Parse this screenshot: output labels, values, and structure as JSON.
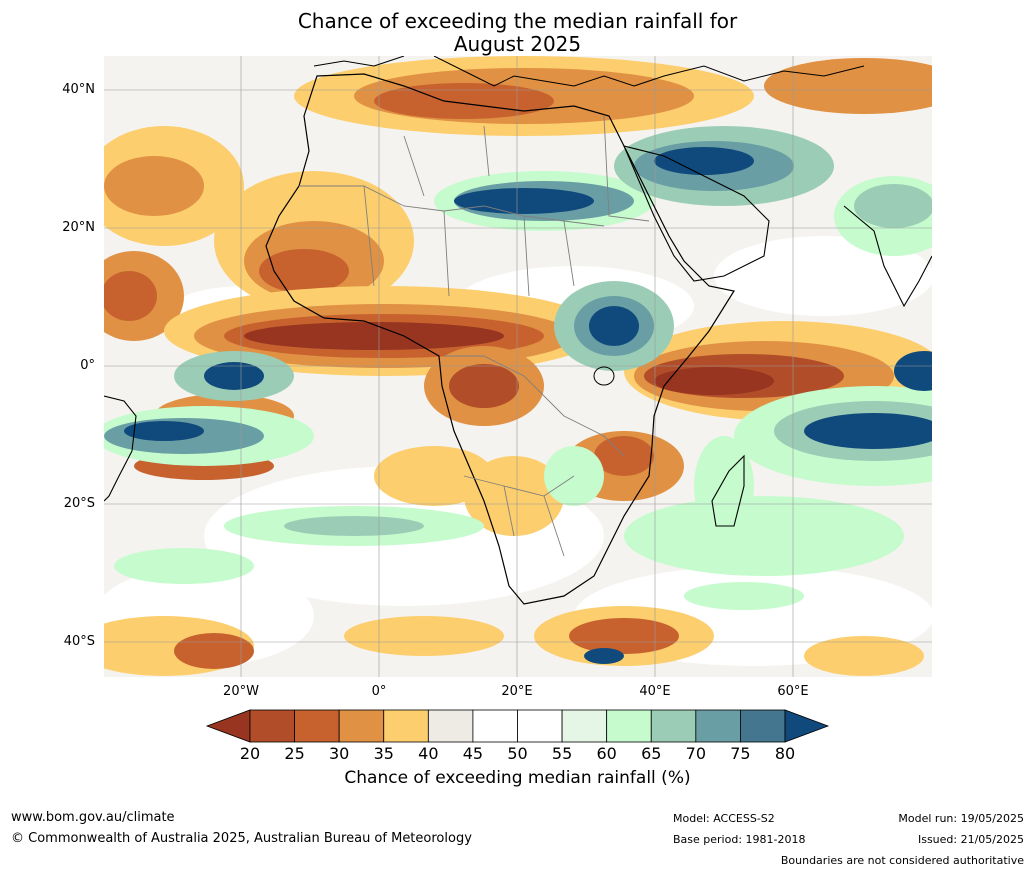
{
  "title_line1": "Chance of exceeding the median rainfall for",
  "title_line2": "August 2025",
  "lat_ticks": [
    {
      "label": "40°N",
      "lat": 40
    },
    {
      "label": "20°N",
      "lat": 20
    },
    {
      "label": "0°",
      "lat": 0
    },
    {
      "label": "20°S",
      "lat": -20
    },
    {
      "label": "40°S",
      "lat": -40
    }
  ],
  "lon_ticks": [
    {
      "label": "20°W",
      "lon": -20
    },
    {
      "label": "0°",
      "lon": 0
    },
    {
      "label": "20°E",
      "lon": 20
    },
    {
      "label": "40°E",
      "lon": 40
    },
    {
      "label": "60°E",
      "lon": 60
    }
  ],
  "colorbar": {
    "labels": [
      "20",
      "25",
      "30",
      "35",
      "40",
      "45",
      "50",
      "55",
      "60",
      "65",
      "70",
      "75",
      "80"
    ],
    "colors": [
      "#973520",
      "#b24d29",
      "#c7622f",
      "#e09143",
      "#fcce6d",
      "#eeebe4",
      "#ffffff",
      "#ffffff",
      "#e5f5e6",
      "#c5fbcd",
      "#9bcdb6",
      "#6a9ea5",
      "#44778f",
      "#104a7c"
    ],
    "title": "Chance of exceeding median rainfall (%)"
  },
  "footer": {
    "website": "www.bom.gov.au/climate",
    "copyright": "© Commonwealth of Australia 2025, Australian Bureau of Meteorology",
    "model": "Model: ACCESS-S2",
    "base_period": "Base period: 1981-2018",
    "model_run": "Model run: 19/05/2025",
    "issued": "Issued: 21/05/2025",
    "disclaimer": "Boundaries are not considered authoritative"
  }
}
